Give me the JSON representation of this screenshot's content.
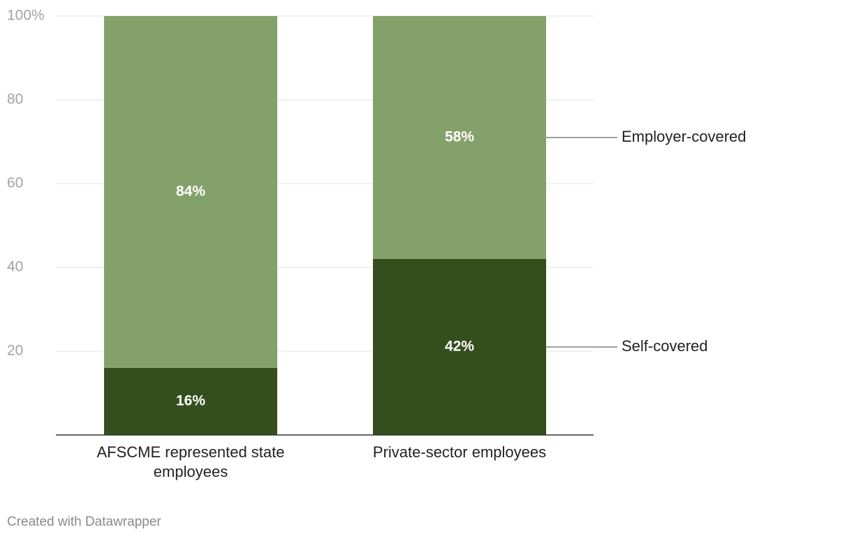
{
  "footer": {
    "credit": "Created with Datawrapper"
  },
  "chart_data": {
    "type": "bar",
    "stacked": true,
    "orientation": "vertical",
    "categories": [
      [
        "AFSCME represented state",
        "employees"
      ],
      [
        "Private-sector employees"
      ]
    ],
    "series": [
      {
        "name": "Self-covered",
        "values": [
          16,
          42
        ],
        "color": "#344e1d",
        "value_labels": [
          "16%",
          "42%"
        ]
      },
      {
        "name": "Employer-covered",
        "values": [
          84,
          58
        ],
        "color": "#84a16a",
        "value_labels": [
          "84%",
          "58%"
        ]
      }
    ],
    "y_ticks": [
      {
        "value": 20,
        "label": "20"
      },
      {
        "value": 40,
        "label": "40"
      },
      {
        "value": 60,
        "label": "60"
      },
      {
        "value": 80,
        "label": "80"
      },
      {
        "value": 100,
        "label": "100%"
      }
    ],
    "ylim": [
      0,
      100
    ],
    "grid": true,
    "legend": "right, inline labels",
    "title": "",
    "xlabel": "",
    "ylabel": "",
    "colors": {
      "grid": "#e3e3e3",
      "axis": "#333333",
      "tick_label": "#a3a3a3",
      "category_label": "#222222",
      "value_label": "#ffffff",
      "legend_label": "#222222",
      "leader_line": "#666666"
    }
  }
}
